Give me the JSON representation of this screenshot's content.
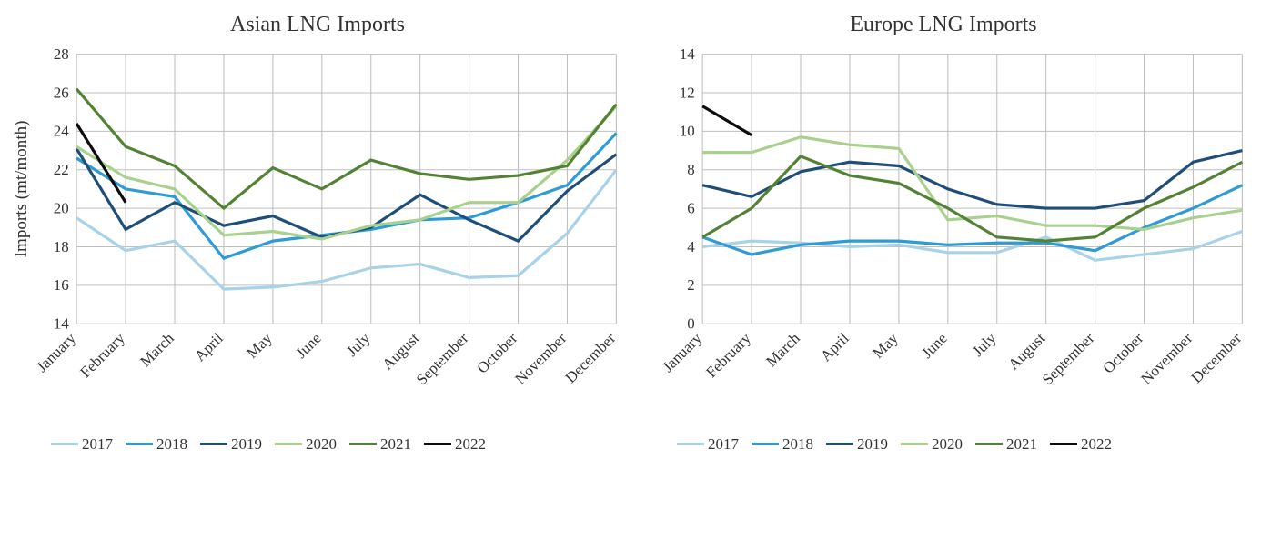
{
  "months": [
    "January",
    "February",
    "March",
    "April",
    "May",
    "June",
    "July",
    "August",
    "September",
    "October",
    "November",
    "December"
  ],
  "legend_years": [
    "2017",
    "2018",
    "2019",
    "2020",
    "2021",
    "2022"
  ],
  "series_colors": {
    "2017": "#a8d2e7",
    "2018": "#2e9bd6",
    "2019": "#1f4e79",
    "2020": "#a9d18e",
    "2021": "#548235",
    "2022": "#0d0d0d"
  },
  "line_width": 3,
  "title_fontsize": 24,
  "tick_fontsize": 16,
  "ylabel_fontsize": 18,
  "background_color": "#ffffff",
  "grid_color": "#bfbfbf",
  "charts": [
    {
      "id": "asia",
      "title": "Asian LNG Imports",
      "ylabel": "Imports (mt/month)",
      "ylim": [
        14,
        28
      ],
      "ytick_step": 2,
      "series": {
        "2017": [
          19.5,
          17.8,
          18.3,
          15.8,
          15.9,
          16.2,
          16.9,
          17.1,
          16.4,
          16.5,
          18.7,
          22.0
        ],
        "2018": [
          22.6,
          21.0,
          20.6,
          17.4,
          18.3,
          18.6,
          18.9,
          19.4,
          19.5,
          20.3,
          21.2,
          23.9
        ],
        "2019": [
          23.1,
          18.9,
          20.3,
          19.1,
          19.6,
          18.5,
          19.0,
          20.7,
          19.4,
          18.3,
          20.9,
          22.8
        ],
        "2020": [
          23.2,
          21.6,
          21.0,
          18.6,
          18.8,
          18.4,
          19.1,
          19.4,
          20.3,
          20.3,
          22.5,
          25.3
        ],
        "2021": [
          26.2,
          23.2,
          22.2,
          20.0,
          22.1,
          21.0,
          22.5,
          21.8,
          21.5,
          21.7,
          22.2,
          25.4
        ],
        "2022": [
          24.4,
          20.3
        ]
      }
    },
    {
      "id": "europe",
      "title": "Europe LNG Imports",
      "ylabel": "",
      "ylim": [
        0,
        14
      ],
      "ytick_step": 2,
      "series": {
        "2017": [
          4.0,
          4.3,
          4.2,
          4.0,
          4.1,
          3.7,
          3.7,
          4.5,
          3.3,
          3.6,
          3.9,
          4.8
        ],
        "2018": [
          4.5,
          3.6,
          4.1,
          4.3,
          4.3,
          4.1,
          4.2,
          4.2,
          3.8,
          5.0,
          6.0,
          7.2
        ],
        "2019": [
          7.2,
          6.6,
          7.9,
          8.4,
          8.2,
          7.0,
          6.2,
          6.0,
          6.0,
          6.4,
          8.4,
          9.0
        ],
        "2020": [
          8.9,
          8.9,
          9.7,
          9.3,
          9.1,
          5.4,
          5.6,
          5.1,
          5.1,
          4.9,
          5.5,
          5.9
        ],
        "2021": [
          4.5,
          6.0,
          8.7,
          7.7,
          7.3,
          6.0,
          4.5,
          4.3,
          4.5,
          6.0,
          7.1,
          8.4
        ],
        "2022": [
          11.3,
          9.8
        ]
      }
    }
  ]
}
